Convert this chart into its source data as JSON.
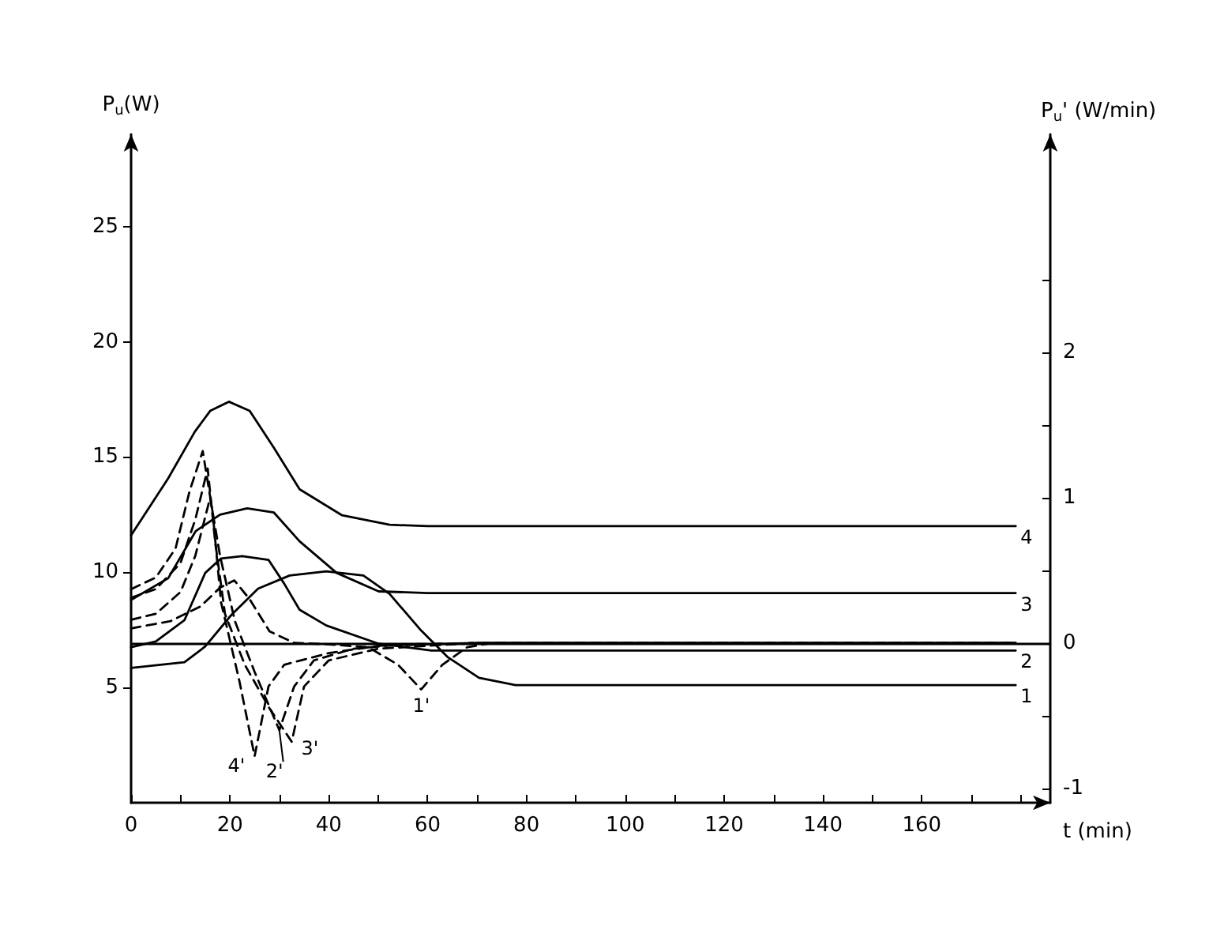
{
  "chart_data": {
    "type": "line",
    "xlabel": "t (min)",
    "ylabel": "P$_{u}$(W)",
    "y2label": "P$_{u}$' (W/min)",
    "xlim": [
      0,
      186
    ],
    "xticks": [
      0,
      {
        "value": 10,
        "label": null
      },
      20,
      {
        "value": 30,
        "label": null
      },
      40,
      {
        "value": 50,
        "label": null
      },
      60,
      {
        "value": 70,
        "label": null
      },
      80,
      {
        "value": 90,
        "label": null
      },
      100,
      {
        "value": 110,
        "label": null
      },
      120,
      {
        "value": 130,
        "label": null
      },
      140,
      {
        "value": 150,
        "label": null
      },
      160,
      {
        "value": 170,
        "label": null
      },
      {
        "value": 180,
        "label": null
      }
    ],
    "ylim": [
      0,
      29
    ],
    "yticks": [
      5,
      10,
      15,
      20,
      25
    ],
    "y2lim": [
      -1.1,
      3.5
    ],
    "y2ticks": [
      -1,
      {
        "value": -0.5,
        "label": null
      },
      0,
      {
        "value": 0.5,
        "label": null
      },
      1,
      {
        "value": 1.5,
        "label": null
      },
      2,
      {
        "value": 2.5,
        "label": null
      }
    ],
    "grid": false,
    "legend": false,
    "marker": "none",
    "line_style": "solid",
    "ref_lines": [
      {
        "axis": "y2",
        "value": 0,
        "color": "#000000"
      }
    ],
    "series": [
      {
        "name": "1",
        "color": "#000000",
        "x": [
          0,
          10.8,
          15,
          20.3,
          25.7,
          32.1,
          39.5,
          47,
          52.3,
          58.7,
          64,
          70.4,
          77.8,
          90,
          179
        ],
        "values": [
          5.85,
          6.1,
          6.78,
          8.15,
          9.29,
          9.86,
          10.04,
          9.86,
          9.06,
          7.47,
          6.33,
          5.42,
          5.1,
          5.1,
          5.1
        ]
      },
      {
        "name": "2",
        "color": "#000000",
        "x": [
          0,
          5,
          10.8,
          15,
          18.2,
          22.5,
          27.8,
          31,
          34.1,
          39.5,
          50.1,
          60.8,
          179
        ],
        "values": [
          6.75,
          7.0,
          7.92,
          9.97,
          10.6,
          10.7,
          10.54,
          9.5,
          8.37,
          7.69,
          6.9,
          6.6,
          6.6
        ]
      },
      {
        "name": "3",
        "color": "#000000",
        "x": [
          0,
          7.5,
          13.1,
          18,
          23.5,
          28.9,
          34.1,
          41.6,
          50.1,
          60,
          179
        ],
        "values": [
          8.8,
          9.74,
          11.79,
          12.5,
          12.77,
          12.59,
          11.34,
          9.97,
          9.17,
          9.1,
          9.1
        ]
      },
      {
        "name": "4",
        "color": "#000000",
        "x": [
          0,
          7.5,
          12.9,
          16,
          19.8,
          24,
          28.9,
          34.1,
          42.7,
          52.3,
          60,
          179
        ],
        "values": [
          11.6,
          14.07,
          16.1,
          17,
          17.4,
          17,
          15.4,
          13.6,
          12.47,
          12.06,
          12.0,
          12.0
        ]
      },
      {
        "name": "1'",
        "color": "#000000",
        "axis": "y2",
        "line_style": "dashed",
        "x": [
          0,
          8,
          14,
          18,
          20.9,
          24,
          28,
          33,
          40,
          48,
          54,
          58.7,
          63,
          68,
          73,
          179
        ],
        "values": [
          0.1,
          0.15,
          0.25,
          0.38,
          0.43,
          0.3,
          0.08,
          0,
          -0.01,
          -0.03,
          -0.15,
          -0.32,
          -0.15,
          -0.03,
          0,
          0
        ]
      },
      {
        "name": "2'",
        "color": "#000000",
        "axis": "y2",
        "line_style": "dashed",
        "x": [
          0,
          5,
          10,
          13,
          16,
          18,
          21,
          25,
          30,
          33,
          37,
          45,
          55,
          72,
          179
        ],
        "values": [
          0.16,
          0.2,
          0.35,
          0.6,
          1.0,
          0.6,
          0.15,
          -0.2,
          -0.6,
          -0.3,
          -0.12,
          -0.04,
          -0.01,
          0,
          0
        ]
      },
      {
        "name": "3'",
        "color": "#000000",
        "axis": "y2",
        "line_style": "dashed",
        "x": [
          0,
          5,
          10,
          13,
          15.5,
          17,
          19,
          23,
          28,
          32.5,
          35,
          40,
          50,
          70,
          179
        ],
        "values": [
          0.31,
          0.37,
          0.55,
          0.85,
          1.2,
          0.7,
          0.2,
          -0.15,
          -0.45,
          -0.68,
          -0.3,
          -0.12,
          -0.04,
          0,
          0
        ]
      },
      {
        "name": "4'",
        "color": "#000000",
        "axis": "y2",
        "line_style": "dashed",
        "x": [
          0,
          5,
          9,
          11.8,
          14.5,
          16.5,
          18.2,
          21.9,
          25,
          27.8,
          31,
          40,
          50,
          70,
          179
        ],
        "values": [
          0.37,
          0.45,
          0.65,
          1.04,
          1.32,
          0.9,
          0.28,
          -0.26,
          -0.78,
          -0.3,
          -0.15,
          -0.07,
          -0.02,
          0,
          0
        ]
      }
    ]
  }
}
